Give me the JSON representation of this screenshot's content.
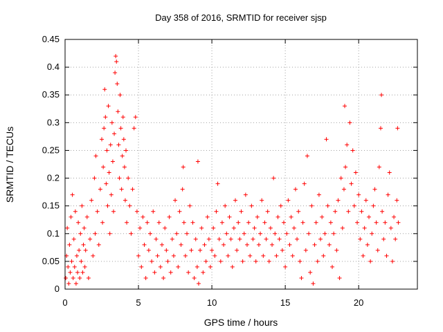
{
  "chart_data": {
    "type": "scatter",
    "title": "Day 358 of 2016, SRMTID for receiver sjsp",
    "xlabel": "GPS time / hours",
    "ylabel": "SRMTID / TECUs",
    "xlim": [
      0,
      24
    ],
    "ylim": [
      0,
      0.45
    ],
    "xticks": [
      "0",
      "5",
      "10",
      "15",
      "20"
    ],
    "xtick_values": [
      0,
      5,
      10,
      15,
      20
    ],
    "yticks": [
      "0",
      "0.05",
      "0.1",
      "0.15",
      "0.2",
      "0.25",
      "0.3",
      "0.35",
      "0.4",
      "0.45"
    ],
    "ytick_values": [
      0,
      0.05,
      0.1,
      0.15,
      0.2,
      0.25,
      0.3,
      0.35,
      0.4,
      0.45
    ],
    "grid": true,
    "marker": "+",
    "color": "#ff0000",
    "x_range_observed": [
      0,
      22.7
    ],
    "series": [
      {
        "name": "SRMTID",
        "points": [
          [
            0.05,
            0.02
          ],
          [
            0.1,
            0.06
          ],
          [
            0.15,
            0.11
          ],
          [
            0.2,
            0.04
          ],
          [
            0.25,
            0.01
          ],
          [
            0.3,
            0.08
          ],
          [
            0.35,
            0.03
          ],
          [
            0.4,
            0.13
          ],
          [
            0.45,
            0.05
          ],
          [
            0.5,
            0.17
          ],
          [
            0.55,
            0.02
          ],
          [
            0.6,
            0.09
          ],
          [
            0.65,
            0.04
          ],
          [
            0.7,
            0.14
          ],
          [
            0.75,
            0.01
          ],
          [
            0.8,
            0.06
          ],
          [
            0.85,
            0.03
          ],
          [
            0.9,
            0.12
          ],
          [
            0.95,
            0.07
          ],
          [
            1.0,
            0.02
          ],
          [
            1.05,
            0.1
          ],
          [
            1.1,
            0.05
          ],
          [
            1.15,
            0.15
          ],
          [
            1.2,
            0.03
          ],
          [
            1.25,
            0.08
          ],
          [
            1.3,
            0.11
          ],
          [
            1.35,
            0.04
          ],
          [
            1.4,
            0.07
          ],
          [
            1.5,
            0.13
          ],
          [
            1.6,
            0.02
          ],
          [
            1.7,
            0.09
          ],
          [
            1.8,
            0.16
          ],
          [
            1.9,
            0.06
          ],
          [
            2.0,
            0.2
          ],
          [
            2.05,
            0.1
          ],
          [
            2.1,
            0.24
          ],
          [
            2.2,
            0.14
          ],
          [
            2.3,
            0.08
          ],
          [
            2.4,
            0.18
          ],
          [
            2.5,
            0.27
          ],
          [
            2.55,
            0.12
          ],
          [
            2.6,
            0.22
          ],
          [
            2.65,
            0.29
          ],
          [
            2.7,
            0.36
          ],
          [
            2.75,
            0.31
          ],
          [
            2.8,
            0.19
          ],
          [
            2.85,
            0.25
          ],
          [
            2.9,
            0.15
          ],
          [
            2.95,
            0.33
          ],
          [
            3.0,
            0.21
          ],
          [
            3.05,
            0.1
          ],
          [
            3.1,
            0.26
          ],
          [
            3.15,
            0.17
          ],
          [
            3.2,
            0.3
          ],
          [
            3.25,
            0.23
          ],
          [
            3.3,
            0.14
          ],
          [
            3.35,
            0.28
          ],
          [
            3.4,
            0.39
          ],
          [
            3.45,
            0.42
          ],
          [
            3.5,
            0.41
          ],
          [
            3.55,
            0.37
          ],
          [
            3.6,
            0.32
          ],
          [
            3.65,
            0.26
          ],
          [
            3.7,
            0.2
          ],
          [
            3.75,
            0.35
          ],
          [
            3.8,
            0.29
          ],
          [
            3.85,
            0.18
          ],
          [
            3.9,
            0.24
          ],
          [
            3.95,
            0.31
          ],
          [
            4.0,
            0.27
          ],
          [
            4.05,
            0.22
          ],
          [
            4.1,
            0.16
          ],
          [
            4.15,
            0.25
          ],
          [
            4.2,
            0.12
          ],
          [
            4.3,
            0.2
          ],
          [
            4.4,
            0.15
          ],
          [
            4.5,
            0.1
          ],
          [
            4.6,
            0.18
          ],
          [
            4.7,
            0.29
          ],
          [
            4.8,
            0.31
          ],
          [
            4.9,
            0.14
          ],
          [
            5.0,
            0.06
          ],
          [
            5.1,
            0.11
          ],
          [
            5.2,
            0.04
          ],
          [
            5.3,
            0.13
          ],
          [
            5.4,
            0.08
          ],
          [
            5.5,
            0.02
          ],
          [
            5.6,
            0.12
          ],
          [
            5.7,
            0.07
          ],
          [
            5.8,
            0.1
          ],
          [
            5.9,
            0.05
          ],
          [
            6.0,
            0.14
          ],
          [
            6.1,
            0.03
          ],
          [
            6.2,
            0.09
          ],
          [
            6.3,
            0.06
          ],
          [
            6.4,
            0.12
          ],
          [
            6.5,
            0.04
          ],
          [
            6.6,
            0.08
          ],
          [
            6.7,
            0.02
          ],
          [
            6.8,
            0.11
          ],
          [
            6.9,
            0.07
          ],
          [
            7.0,
            0.05
          ],
          [
            7.1,
            0.13
          ],
          [
            7.2,
            0.03
          ],
          [
            7.3,
            0.09
          ],
          [
            7.4,
            0.06
          ],
          [
            7.5,
            0.16
          ],
          [
            7.6,
            0.1
          ],
          [
            7.7,
            0.04
          ],
          [
            7.8,
            0.14
          ],
          [
            7.9,
            0.08
          ],
          [
            8.0,
            0.18
          ],
          [
            8.05,
            0.22
          ],
          [
            8.1,
            0.12
          ],
          [
            8.2,
            0.06
          ],
          [
            8.3,
            0.1
          ],
          [
            8.4,
            0.03
          ],
          [
            8.5,
            0.15
          ],
          [
            8.6,
            0.07
          ],
          [
            8.7,
            0.12
          ],
          [
            8.8,
            0.02
          ],
          [
            8.9,
            0.09
          ],
          [
            9.0,
            0.04
          ],
          [
            9.05,
            0.23
          ],
          [
            9.1,
            0.01
          ],
          [
            9.2,
            0.07
          ],
          [
            9.3,
            0.11
          ],
          [
            9.4,
            0.03
          ],
          [
            9.5,
            0.08
          ],
          [
            9.6,
            0.05
          ],
          [
            9.7,
            0.13
          ],
          [
            9.8,
            0.09
          ],
          [
            9.9,
            0.04
          ],
          [
            10.0,
            0.07
          ],
          [
            10.1,
            0.11
          ],
          [
            10.2,
            0.06
          ],
          [
            10.3,
            0.14
          ],
          [
            10.4,
            0.19
          ],
          [
            10.5,
            0.09
          ],
          [
            10.6,
            0.05
          ],
          [
            10.7,
            0.12
          ],
          [
            10.8,
            0.08
          ],
          [
            10.9,
            0.15
          ],
          [
            11.0,
            0.1
          ],
          [
            11.1,
            0.06
          ],
          [
            11.2,
            0.13
          ],
          [
            11.3,
            0.09
          ],
          [
            11.4,
            0.04
          ],
          [
            11.5,
            0.11
          ],
          [
            11.6,
            0.16
          ],
          [
            11.7,
            0.07
          ],
          [
            11.8,
            0.12
          ],
          [
            11.9,
            0.09
          ],
          [
            12.0,
            0.14
          ],
          [
            12.1,
            0.05
          ],
          [
            12.2,
            0.1
          ],
          [
            12.3,
            0.17
          ],
          [
            12.4,
            0.08
          ],
          [
            12.5,
            0.12
          ],
          [
            12.6,
            0.06
          ],
          [
            12.7,
            0.15
          ],
          [
            12.8,
            0.09
          ],
          [
            12.9,
            0.11
          ],
          [
            13.0,
            0.05
          ],
          [
            13.1,
            0.13
          ],
          [
            13.2,
            0.08
          ],
          [
            13.3,
            0.1
          ],
          [
            13.4,
            0.16
          ],
          [
            13.5,
            0.06
          ],
          [
            13.6,
            0.12
          ],
          [
            13.7,
            0.09
          ],
          [
            13.8,
            0.14
          ],
          [
            13.9,
            0.05
          ],
          [
            14.0,
            0.11
          ],
          [
            14.1,
            0.08
          ],
          [
            14.2,
            0.2
          ],
          [
            14.3,
            0.1
          ],
          [
            14.4,
            0.06
          ],
          [
            14.5,
            0.13
          ],
          [
            14.6,
            0.09
          ],
          [
            14.7,
            0.15
          ],
          [
            14.8,
            0.07
          ],
          [
            14.9,
            0.12
          ],
          [
            15.0,
            0.04
          ],
          [
            15.1,
            0.1
          ],
          [
            15.2,
            0.16
          ],
          [
            15.3,
            0.08
          ],
          [
            15.4,
            0.13
          ],
          [
            15.5,
            0.06
          ],
          [
            15.6,
            0.11
          ],
          [
            15.7,
            0.18
          ],
          [
            15.8,
            0.09
          ],
          [
            15.9,
            0.14
          ],
          [
            16.0,
            0.05
          ],
          [
            16.1,
            0.02
          ],
          [
            16.2,
            0.12
          ],
          [
            16.3,
            0.19
          ],
          [
            16.4,
            0.07
          ],
          [
            16.5,
            0.24
          ],
          [
            16.6,
            0.1
          ],
          [
            16.7,
            0.03
          ],
          [
            16.8,
            0.15
          ],
          [
            16.9,
            0.01
          ],
          [
            17.0,
            0.08
          ],
          [
            17.1,
            0.12
          ],
          [
            17.2,
            0.05
          ],
          [
            17.3,
            0.17
          ],
          [
            17.4,
            0.09
          ],
          [
            17.5,
            0.13
          ],
          [
            17.6,
            0.06
          ],
          [
            17.7,
            0.1
          ],
          [
            17.8,
            0.27
          ],
          [
            17.9,
            0.15
          ],
          [
            18.0,
            0.08
          ],
          [
            18.1,
            0.12
          ],
          [
            18.2,
            0.04
          ],
          [
            18.3,
            0.1
          ],
          [
            18.4,
            0.14
          ],
          [
            18.5,
            0.07
          ],
          [
            18.6,
            0.16
          ],
          [
            18.7,
            0.02
          ],
          [
            18.8,
            0.2
          ],
          [
            18.9,
            0.11
          ],
          [
            19.0,
            0.18
          ],
          [
            19.05,
            0.33
          ],
          [
            19.1,
            0.22
          ],
          [
            19.2,
            0.26
          ],
          [
            19.3,
            0.14
          ],
          [
            19.4,
            0.3
          ],
          [
            19.5,
            0.19
          ],
          [
            19.6,
            0.25
          ],
          [
            19.7,
            0.15
          ],
          [
            19.8,
            0.21
          ],
          [
            19.9,
            0.12
          ],
          [
            20.0,
            0.17
          ],
          [
            20.1,
            0.09
          ],
          [
            20.2,
            0.14
          ],
          [
            20.3,
            0.06
          ],
          [
            20.4,
            0.11
          ],
          [
            20.5,
            0.16
          ],
          [
            20.6,
            0.08
          ],
          [
            20.7,
            0.13
          ],
          [
            20.8,
            0.05
          ],
          [
            20.9,
            0.1
          ],
          [
            21.0,
            0.15
          ],
          [
            21.1,
            0.18
          ],
          [
            21.2,
            0.12
          ],
          [
            21.3,
            0.07
          ],
          [
            21.4,
            0.22
          ],
          [
            21.5,
            0.29
          ],
          [
            21.55,
            0.35
          ],
          [
            21.6,
            0.14
          ],
          [
            21.7,
            0.09
          ],
          [
            21.8,
            0.12
          ],
          [
            21.9,
            0.06
          ],
          [
            22.0,
            0.17
          ],
          [
            22.1,
            0.21
          ],
          [
            22.2,
            0.11
          ],
          [
            22.3,
            0.05
          ],
          [
            22.4,
            0.13
          ],
          [
            22.5,
            0.09
          ],
          [
            22.6,
            0.16
          ],
          [
            22.65,
            0.29
          ],
          [
            22.7,
            0.12
          ]
        ]
      }
    ]
  }
}
